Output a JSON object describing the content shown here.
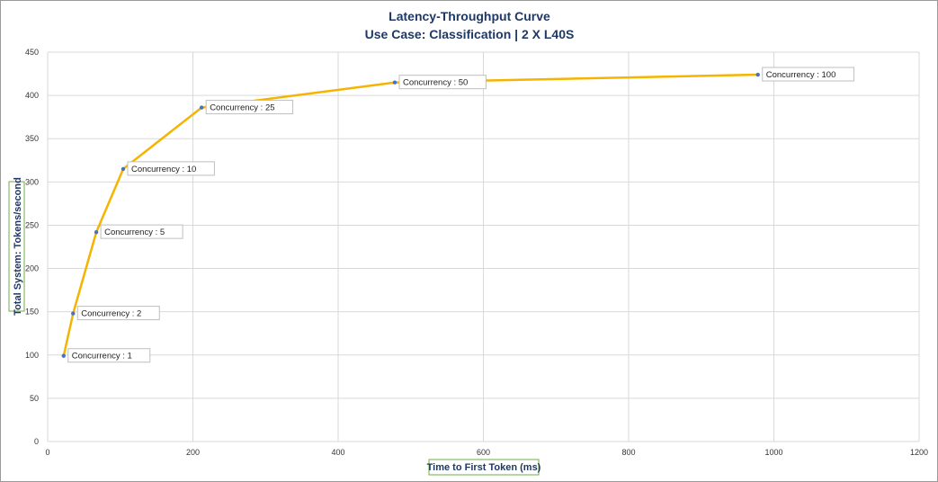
{
  "chart_data": {
    "type": "line",
    "title": "Latency-Throughput Curve",
    "subtitle": "Use Case: Classification | 2 X L40S",
    "xlabel": "Time to First Token (ms)",
    "ylabel": "Total System: Tokens/second",
    "xlim": [
      0,
      1200
    ],
    "ylim": [
      0,
      450
    ],
    "xticks": [
      0,
      200,
      400,
      600,
      800,
      1000,
      1200
    ],
    "yticks": [
      0,
      50,
      100,
      150,
      200,
      250,
      300,
      350,
      400,
      450
    ],
    "grid": true,
    "line_color": "#f4b400",
    "marker_color": "#4472c4",
    "points": [
      {
        "x": 22,
        "y": 99,
        "label": "Concurrency : 1"
      },
      {
        "x": 35,
        "y": 148,
        "label": "Concurrency : 2"
      },
      {
        "x": 67,
        "y": 242,
        "label": "Concurrency : 5"
      },
      {
        "x": 104,
        "y": 315,
        "label": "Concurrency : 10"
      },
      {
        "x": 212,
        "y": 386,
        "label": "Concurrency : 25"
      },
      {
        "x": 478,
        "y": 415,
        "label": "Concurrency : 50"
      },
      {
        "x": 978,
        "y": 424,
        "label": "Concurrency : 100"
      }
    ]
  }
}
